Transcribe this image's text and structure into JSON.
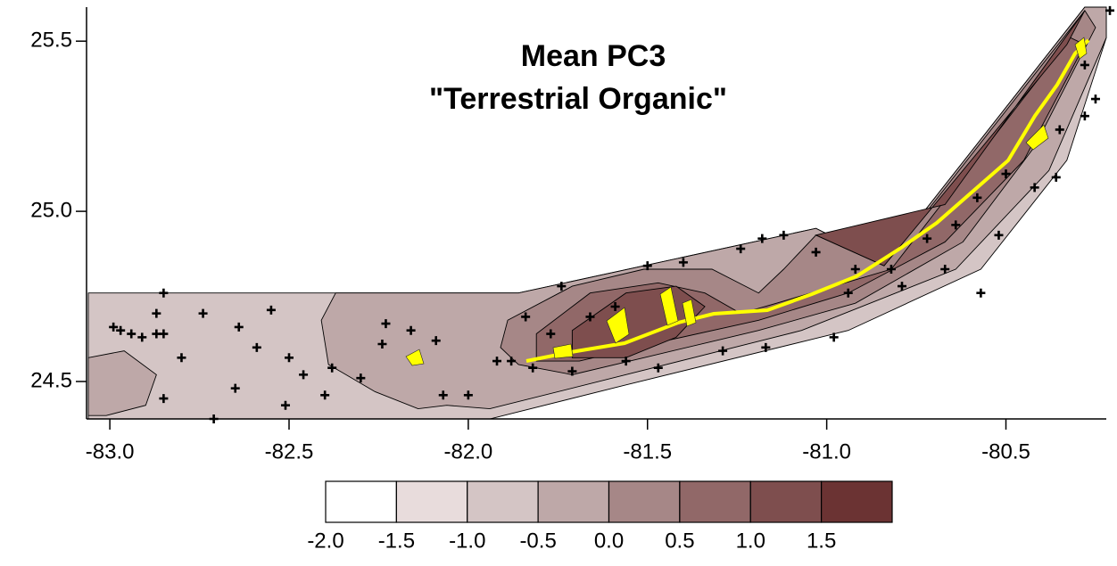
{
  "chart_data": {
    "type": "contour",
    "title": [
      "Mean PC3",
      "\"Terrestrial Organic\""
    ],
    "xlim": [
      -83.065,
      -80.22
    ],
    "ylim": [
      24.39,
      25.6
    ],
    "xticks": [
      {
        "value": -83,
        "label": "-83.0"
      },
      -82.5,
      {
        "value": -82,
        "label": "-82.0"
      },
      -81.5,
      {
        "value": -81,
        "label": "-81.0"
      },
      -80.5
    ],
    "yticks": [
      24.5,
      {
        "value": 25,
        "label": "25.0"
      },
      25.5
    ],
    "levels": [
      {
        "value": -2,
        "label": "-2.0"
      },
      -1.5,
      {
        "value": -1,
        "label": "-1.0"
      },
      -0.5,
      {
        "value": 0,
        "label": "0.0"
      },
      0.5,
      {
        "value": 1,
        "label": "1.0"
      },
      1.5
    ],
    "level_colors": [
      "#ffffff",
      "#e8dcdc",
      "#d4c5c5",
      "#bea8a8",
      "#a68787",
      "#916868",
      "#7e4e4e",
      "#6b3333"
    ],
    "regions": [
      {
        "level": -1,
        "points": [
          [
            -83.06,
            24.76
          ],
          [
            -81.86,
            24.76
          ],
          [
            -81.03,
            24.95
          ],
          [
            -80.84,
            24.85
          ],
          [
            -80.28,
            25.6
          ],
          [
            -80.22,
            25.6
          ],
          [
            -80.22,
            25.51
          ],
          [
            -80.33,
            25.15
          ],
          [
            -80.57,
            24.83
          ],
          [
            -80.94,
            24.65
          ],
          [
            -81.56,
            24.49
          ],
          [
            -81.94,
            24.39
          ],
          [
            -83.06,
            24.39
          ]
        ]
      },
      {
        "level": -0.5,
        "points": [
          [
            -83.06,
            24.57
          ],
          [
            -82.96,
            24.59
          ],
          [
            -82.87,
            24.52
          ],
          [
            -82.9,
            24.43
          ],
          [
            -83.01,
            24.4
          ],
          [
            -83.06,
            24.4
          ]
        ]
      },
      {
        "level": -0.5,
        "points": [
          [
            -82.37,
            24.76
          ],
          [
            -81.86,
            24.76
          ],
          [
            -81.03,
            24.95
          ],
          [
            -80.84,
            24.85
          ],
          [
            -80.28,
            25.6
          ],
          [
            -80.22,
            25.6
          ],
          [
            -80.22,
            25.51
          ],
          [
            -80.38,
            25.12
          ],
          [
            -80.64,
            24.83
          ],
          [
            -81.07,
            24.65
          ],
          [
            -81.56,
            24.52
          ],
          [
            -81.94,
            24.42
          ],
          [
            -82.06,
            24.43
          ],
          [
            -82.14,
            24.42
          ],
          [
            -82.26,
            24.47
          ],
          [
            -82.39,
            24.55
          ],
          [
            -82.41,
            24.68
          ]
        ]
      },
      {
        "level": 0,
        "points": [
          [
            -81.89,
            24.68
          ],
          [
            -81.71,
            24.78
          ],
          [
            -81.51,
            24.83
          ],
          [
            -81.32,
            24.83
          ],
          [
            -81.19,
            24.76
          ],
          [
            -81.12,
            24.83
          ],
          [
            -81.03,
            24.93
          ],
          [
            -80.84,
            24.84
          ],
          [
            -80.28,
            25.59
          ],
          [
            -80.25,
            25.54
          ],
          [
            -80.42,
            25.19
          ],
          [
            -80.62,
            24.91
          ],
          [
            -80.92,
            24.73
          ],
          [
            -81.19,
            24.65
          ],
          [
            -81.51,
            24.57
          ],
          [
            -81.71,
            24.52
          ],
          [
            -81.86,
            24.55
          ],
          [
            -81.91,
            24.6
          ]
        ]
      },
      {
        "level": 0.5,
        "points": [
          [
            -81.81,
            24.64
          ],
          [
            -81.66,
            24.76
          ],
          [
            -81.47,
            24.79
          ],
          [
            -81.34,
            24.76
          ],
          [
            -81.24,
            24.7
          ],
          [
            -81.14,
            24.73
          ],
          [
            -80.82,
            24.83
          ],
          [
            -80.32,
            25.51
          ],
          [
            -80.28,
            25.49
          ],
          [
            -80.45,
            25.15
          ],
          [
            -80.67,
            24.91
          ],
          [
            -80.94,
            24.76
          ],
          [
            -81.19,
            24.68
          ],
          [
            -81.49,
            24.61
          ],
          [
            -81.69,
            24.56
          ],
          [
            -81.81,
            24.56
          ]
        ]
      },
      {
        "level": 1,
        "points": [
          [
            -81.71,
            24.65
          ],
          [
            -81.56,
            24.76
          ],
          [
            -81.42,
            24.78
          ],
          [
            -81.34,
            24.72
          ],
          [
            -81.42,
            24.63
          ],
          [
            -81.56,
            24.57
          ],
          [
            -81.71,
            24.57
          ]
        ]
      },
      {
        "level": 1,
        "points": [
          [
            -81.03,
            24.93
          ],
          [
            -80.84,
            24.84
          ],
          [
            -80.33,
            25.49
          ],
          [
            -80.28,
            25.59
          ],
          [
            -80.67,
            25.02
          ]
        ]
      }
    ],
    "stations": {
      "x": [
        -82.99,
        -82.97,
        -82.94,
        -82.91,
        -82.87,
        -82.87,
        -82.85,
        -82.85,
        -82.8,
        -82.74,
        -82.64,
        -82.59,
        -82.55,
        -82.5,
        -82.65,
        -82.51,
        -82.46,
        -82.4,
        -82.38,
        -82.3,
        -82.24,
        -82.23,
        -82.16,
        -82.09,
        -82.07,
        -82.0,
        -81.92,
        -81.88,
        -81.84,
        -81.82,
        -81.77,
        -81.74,
        -81.66,
        -81.59,
        -81.5,
        -81.4,
        -81.24,
        -81.18,
        -81.12,
        -81.03,
        -80.92,
        -80.82,
        -80.72,
        -80.64,
        -80.58,
        -80.5,
        -80.42,
        -80.35,
        -80.28,
        -80.25,
        -80.21,
        -81.17,
        -81.29,
        -81.47,
        -81.56,
        -80.94,
        -80.79,
        -80.67,
        -80.52,
        -80.36,
        -80.28,
        -82.85,
        -82.71,
        -81.71,
        -80.98,
        -80.57
      ],
      "y": [
        24.66,
        24.65,
        24.64,
        24.63,
        24.7,
        24.64,
        24.64,
        24.76,
        24.57,
        24.7,
        24.66,
        24.6,
        24.71,
        24.57,
        24.48,
        24.43,
        24.52,
        24.46,
        24.54,
        24.51,
        24.61,
        24.67,
        24.65,
        24.62,
        24.46,
        24.46,
        24.56,
        24.56,
        24.69,
        24.54,
        24.64,
        24.78,
        24.69,
        24.72,
        24.84,
        24.85,
        24.89,
        24.92,
        24.93,
        24.88,
        24.83,
        24.83,
        24.92,
        24.96,
        25.04,
        25.11,
        25.07,
        25.24,
        25.28,
        25.33,
        25.59,
        24.6,
        24.59,
        24.54,
        24.56,
        24.76,
        24.78,
        24.83,
        24.93,
        25.1,
        25.43,
        24.45,
        24.39,
        24.53,
        24.63,
        24.76
      ]
    }
  }
}
